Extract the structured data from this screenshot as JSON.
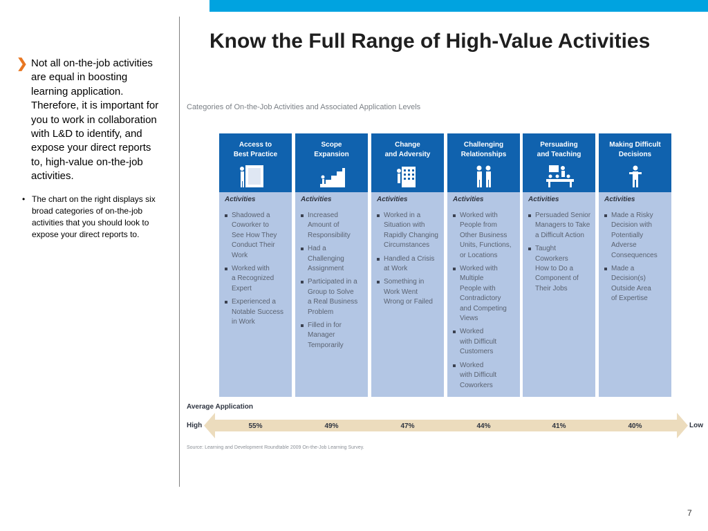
{
  "slide": {
    "title": "Know the Full Range of High-Value Activities",
    "page_number": "7",
    "accent_color": "#00a3e0"
  },
  "left_text": {
    "main_point": "Not all on-the-job activities are equal in boosting learning application. Therefore, it is important for you to work in collaboration with L&D to identify, and expose your direct reports to, high-value on-the-job activities.",
    "sub_point": "The chart on the right displays six broad categories of on-the-job activities that you should look to expose your direct reports to."
  },
  "figure": {
    "caption": "Categories of On-the-Job Activities and Associated Application Levels",
    "activities_heading": "Activities",
    "average_label": "Average Application",
    "high_label": "High",
    "low_label": "Low",
    "source": "Source:  Learning and Development Roundtable 2009 On-the-Job Learning Survey.",
    "header_color": "#1062ae",
    "body_color": "#b3c6e4",
    "arrow_color": "#ecdcbd"
  },
  "chart_data": {
    "type": "table",
    "title": "Categories of On-the-Job Activities and Associated Application Levels",
    "categories": [
      {
        "name": "Access to\nBest Practice",
        "icon": "presentation-board-icon",
        "average_application": "55%",
        "activities": [
          "Shadowed a\nCoworker to\nSee How They\nConduct Their\nWork",
          "Worked with\na Recognized\nExpert",
          "Experienced a\nNotable Success\nin Work"
        ]
      },
      {
        "name": "Scope\nExpansion",
        "icon": "stairs-climb-icon",
        "average_application": "49%",
        "activities": [
          "Increased\nAmount of\nResponsibility",
          "Had a\nChallenging\nAssignment",
          "Participated in a\nGroup to Solve\na Real Business\nProblem",
          "Filled in for\nManager\nTemporarily"
        ]
      },
      {
        "name": "Change\nand Adversity",
        "icon": "building-icon",
        "average_application": "47%",
        "activities": [
          "Worked in a\nSituation with\nRapidly Changing\nCircumstances",
          "Handled a Crisis\nat Work",
          "Something in\nWork Went\nWrong or Failed"
        ]
      },
      {
        "name": "Challenging\nRelationships",
        "icon": "two-people-icon",
        "average_application": "44%",
        "activities": [
          "Worked with\nPeople from\nOther Business\nUnits, Functions,\nor Locations",
          "Worked with\nMultiple\nPeople with\nContradictory\nand Competing\nViews",
          "Worked\nwith Difficult\nCustomers",
          "Worked\nwith Difficult\nCoworkers"
        ]
      },
      {
        "name": "Persuading\nand Teaching",
        "icon": "teaching-group-icon",
        "average_application": "41%",
        "activities": [
          "Persuaded Senior\nManagers to Take\na Difficult Action",
          "Taught\nCoworkers\nHow to Do a\nComponent of\nTheir Jobs"
        ]
      },
      {
        "name": "Making Difficult\nDecisions",
        "icon": "single-person-icon",
        "average_application": "40%",
        "activities": [
          "Made a Risky\nDecision with\nPotentially\nAdverse\nConsequences",
          "Made a\nDecision(s)\nOutside Area\nof Expertise"
        ]
      }
    ],
    "values": [
      55,
      49,
      47,
      44,
      41,
      40
    ],
    "unit": "%"
  }
}
